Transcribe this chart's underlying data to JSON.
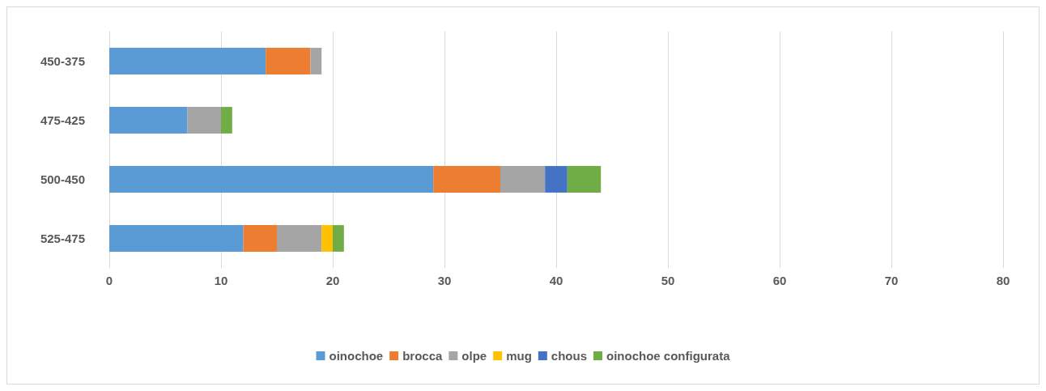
{
  "chart_data": {
    "type": "bar",
    "orientation": "horizontal",
    "stacked": true,
    "categories": [
      "450-375",
      "475-425",
      "500-450",
      "525-475"
    ],
    "series": [
      {
        "name": "oinochoe",
        "color": "#5b9bd5",
        "values": [
          14,
          7,
          29,
          12
        ]
      },
      {
        "name": "brocca",
        "color": "#ed7d31",
        "values": [
          4,
          null,
          6,
          3
        ]
      },
      {
        "name": "olpe",
        "color": "#a5a5a5",
        "values": [
          1,
          3,
          4,
          4
        ]
      },
      {
        "name": "mug",
        "color": "#ffc000",
        "values": [
          null,
          null,
          null,
          1
        ]
      },
      {
        "name": "chous",
        "color": "#4472c4",
        "values": [
          null,
          null,
          2,
          null
        ]
      },
      {
        "name": "oinochoe configurata",
        "color": "#70ad47",
        "values": [
          null,
          1,
          3,
          1
        ]
      }
    ],
    "xlim": [
      0,
      80
    ],
    "xticks": [
      0,
      10,
      20,
      30,
      40,
      50,
      60,
      70,
      80
    ],
    "grid": "x",
    "legend": "bottom"
  }
}
